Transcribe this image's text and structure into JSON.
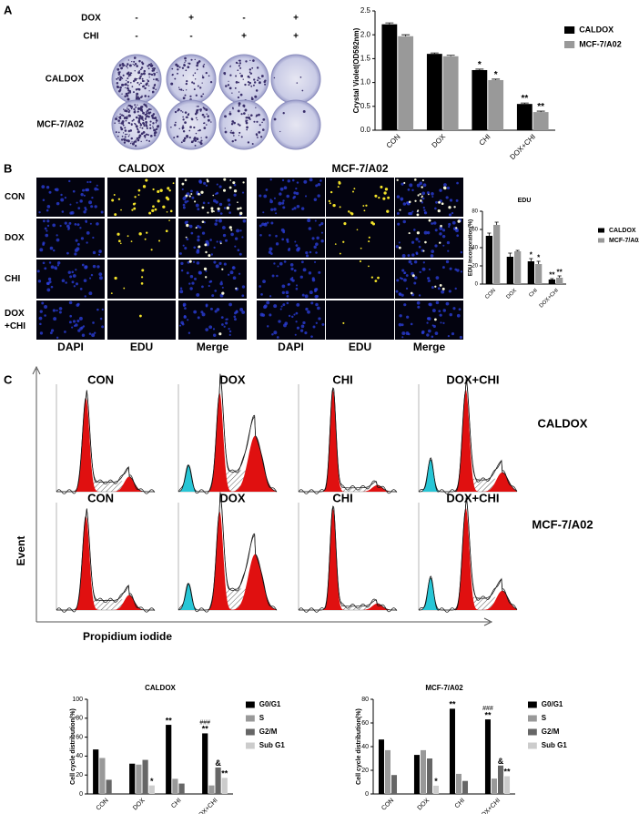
{
  "panel_a": {
    "letter": "A",
    "treatments": [
      {
        "name": "DOX",
        "signs": [
          "-",
          "+",
          "-",
          "+"
        ]
      },
      {
        "name": "CHI",
        "signs": [
          "-",
          "-",
          "+",
          "+"
        ]
      }
    ],
    "rows": [
      "CALDOX",
      "MCF-7/A02"
    ]
  },
  "panel_b": {
    "letter": "B",
    "groups": [
      "CALDOX",
      "MCF-7/A02"
    ],
    "rows": [
      [
        "CON"
      ],
      [
        "DOX"
      ],
      [
        "CHI"
      ],
      [
        "DOX",
        "+CHI"
      ]
    ],
    "columns": [
      "DAPI",
      "EDU",
      "Merge"
    ]
  },
  "panel_c": {
    "letter": "C",
    "conditions": [
      "CON",
      "DOX",
      "CHI",
      "DOX+CHI"
    ],
    "rows": [
      "CALDOX",
      "MCF-7/A02"
    ],
    "y_axis": "Event",
    "x_axis": "Propidium iodide"
  },
  "chart_data": [
    {
      "type": "bar",
      "ylabel": "Crystal Violet(OD592nm)",
      "categories": [
        "CON",
        "DOX",
        "CHI",
        "DOX+CHI"
      ],
      "series": [
        {
          "name": "CALDOX",
          "color": "#000000",
          "values": [
            2.22,
            1.6,
            1.26,
            0.55
          ],
          "errors": [
            0.03,
            0.02,
            0.02,
            0.02
          ],
          "significance": [
            null,
            null,
            "*",
            "**"
          ]
        },
        {
          "name": "MCF-7/A02",
          "color": "#999999",
          "values": [
            1.97,
            1.55,
            1.05,
            0.38
          ],
          "errors": [
            0.03,
            0.02,
            0.02,
            0.02
          ],
          "significance": [
            null,
            null,
            "*",
            "**"
          ]
        }
      ],
      "ylim": [
        0,
        2.5
      ],
      "yticks": [
        {
          "value": 0,
          "label": "0.0"
        },
        {
          "value": 0.5,
          "label": "0.5"
        },
        {
          "value": 1,
          "label": "1.0"
        },
        {
          "value": 1.5,
          "label": "1.5"
        },
        {
          "value": 2,
          "label": "2.0"
        },
        {
          "value": 2.5,
          "label": "2.5"
        }
      ],
      "legend": "right"
    },
    {
      "type": "bar",
      "title": "EDU",
      "ylabel": "EDU incorporation(%)",
      "categories": [
        "CON",
        "DOX",
        "CHI",
        "DOX+CHI"
      ],
      "series": [
        {
          "name": "CALDOX",
          "color": "#000000",
          "values": [
            53,
            30,
            25,
            5
          ],
          "errors": [
            3,
            4,
            3,
            1
          ],
          "significance": [
            null,
            null,
            "*",
            "**"
          ]
        },
        {
          "name": "MCF-7/A02",
          "color": "#999999",
          "values": [
            65,
            36,
            22,
            7
          ],
          "errors": [
            3,
            1,
            3,
            2
          ],
          "significance": [
            null,
            null,
            "*",
            "**"
          ]
        }
      ],
      "ylim": [
        0,
        80
      ],
      "yticks": [
        0,
        20,
        40,
        60,
        80
      ],
      "legend": "right"
    },
    {
      "type": "bar",
      "title": "CALDOX",
      "ylabel": "Cell cycle distribution(%)",
      "categories": [
        "CON",
        "DOX",
        "CHI",
        "DOX+CHI"
      ],
      "series": [
        {
          "name": "G0/G1",
          "color": "#000000",
          "values": [
            47,
            32,
            73,
            64
          ],
          "significance": [
            null,
            null,
            "**",
            "**"
          ],
          "comparison": [
            null,
            null,
            null,
            "###"
          ]
        },
        {
          "name": "S",
          "color": "#999999",
          "values": [
            38,
            31,
            16,
            9
          ]
        },
        {
          "name": "G2/M",
          "color": "#666666",
          "values": [
            15,
            36,
            11,
            28
          ],
          "significance": [
            null,
            null,
            null,
            "&"
          ]
        },
        {
          "name": "Sub G1",
          "color": "#cccccc",
          "values": [
            null,
            9,
            null,
            17
          ],
          "significance": [
            null,
            "*",
            null,
            "**"
          ]
        }
      ],
      "ylim": [
        0,
        100
      ],
      "yticks": [
        0,
        20,
        40,
        60,
        80,
        100
      ],
      "legend": "right"
    },
    {
      "type": "bar",
      "title": "MCF-7/A02",
      "ylabel": "Cell cycle distribution(%)",
      "categories": [
        "CON",
        "DOX",
        "CHI",
        "DOX+CHI"
      ],
      "series": [
        {
          "name": "G0/G1",
          "color": "#000000",
          "values": [
            46,
            33,
            72,
            63
          ],
          "significance": [
            null,
            null,
            "**",
            "**"
          ],
          "comparison": [
            null,
            null,
            null,
            "###"
          ]
        },
        {
          "name": "S",
          "color": "#999999",
          "values": [
            37,
            37,
            17,
            13
          ]
        },
        {
          "name": "G2/M",
          "color": "#666666",
          "values": [
            16,
            30,
            11,
            24
          ],
          "significance": [
            null,
            null,
            null,
            "&"
          ]
        },
        {
          "name": "Sub G1",
          "color": "#cccccc",
          "values": [
            null,
            7,
            null,
            15
          ],
          "significance": [
            null,
            "*",
            null,
            "**"
          ]
        }
      ],
      "ylim": [
        0,
        80
      ],
      "yticks": [
        0,
        20,
        40,
        60,
        80
      ],
      "legend": "right"
    }
  ]
}
